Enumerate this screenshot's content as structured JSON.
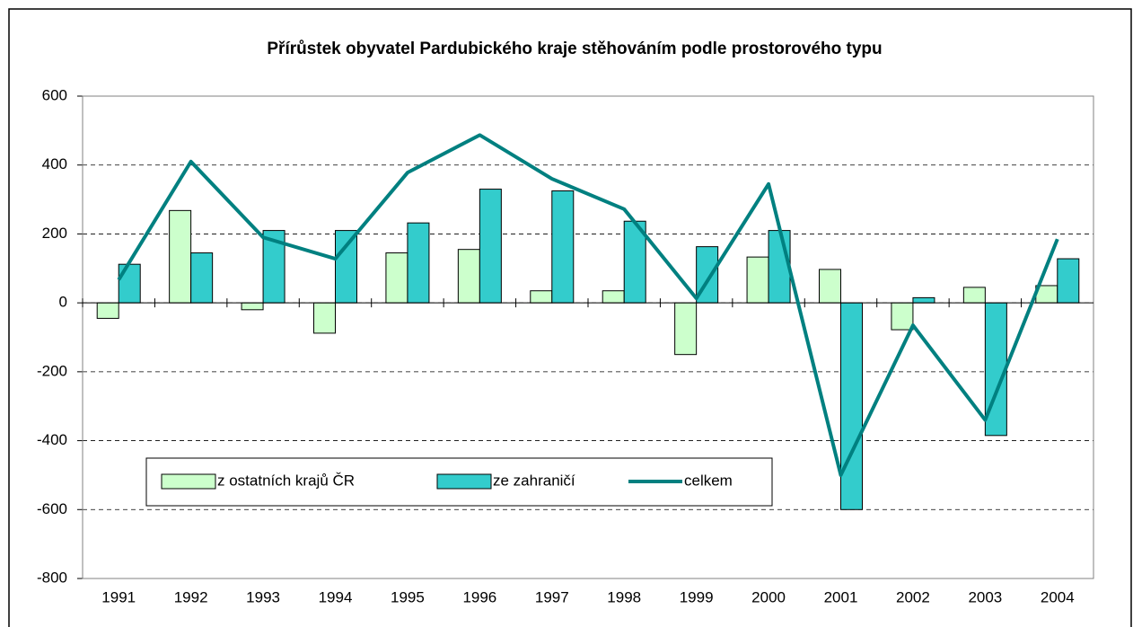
{
  "chart_data": {
    "type": "bar_line",
    "title": "Přírůstek obyvatel Pardubického kraje stěhováním podle prostorového typu",
    "categories": [
      "1991",
      "1992",
      "1993",
      "1994",
      "1995",
      "1996",
      "1997",
      "1998",
      "1999",
      "2000",
      "2001",
      "2002",
      "2003",
      "2004"
    ],
    "series": [
      {
        "name": "z ostatních krajů ČR",
        "type": "bar",
        "color": "#ccffcc",
        "values": [
          -45,
          268,
          -20,
          -88,
          145,
          155,
          35,
          35,
          -150,
          133,
          97,
          -78,
          45,
          50
        ]
      },
      {
        "name": "ze zahraničí",
        "type": "bar",
        "color": "#33cccc",
        "values": [
          112,
          145,
          210,
          210,
          232,
          330,
          325,
          237,
          163,
          210,
          -600,
          15,
          -385,
          128
        ]
      },
      {
        "name": "celkem",
        "type": "line",
        "color": "#008080",
        "values": [
          67,
          410,
          190,
          128,
          378,
          487,
          360,
          272,
          13,
          345,
          -500,
          -65,
          -340,
          185
        ]
      }
    ],
    "ylim": [
      -800,
      600
    ],
    "yticks": [
      -800,
      -600,
      -400,
      -200,
      0,
      200,
      400,
      600
    ],
    "grid": true
  }
}
